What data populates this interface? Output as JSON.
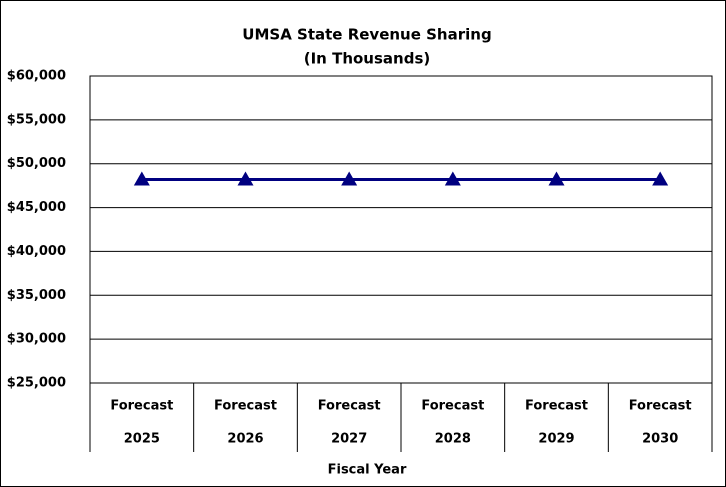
{
  "chart_data": {
    "type": "line",
    "title": "UMSA State Revenue Sharing",
    "subtitle": "(In Thousands)",
    "x_label": "Fiscal Year",
    "categories": [
      [
        "Forecast",
        "2025"
      ],
      [
        "Forecast",
        "2026"
      ],
      [
        "Forecast",
        "2027"
      ],
      [
        "Forecast",
        "2028"
      ],
      [
        "Forecast",
        "2029"
      ],
      [
        "Forecast",
        "2030"
      ]
    ],
    "series": [
      {
        "name": "UMSA State Revenue Sharing",
        "color": "#000080",
        "values": [
          48200,
          48200,
          48200,
          48200,
          48200,
          48200
        ]
      }
    ],
    "ylim": [
      25000,
      60000
    ],
    "yticks": [
      {
        "value": 25000,
        "label": "$25,000"
      },
      {
        "value": 30000,
        "label": "$30,000"
      },
      {
        "value": 35000,
        "label": "$35,000"
      },
      {
        "value": 40000,
        "label": "$40,000"
      },
      {
        "value": 45000,
        "label": "$45,000"
      },
      {
        "value": 50000,
        "label": "$50,000"
      },
      {
        "value": 55000,
        "label": "$55,000"
      },
      {
        "value": 60000,
        "label": "$60,000"
      }
    ],
    "grid": true
  }
}
